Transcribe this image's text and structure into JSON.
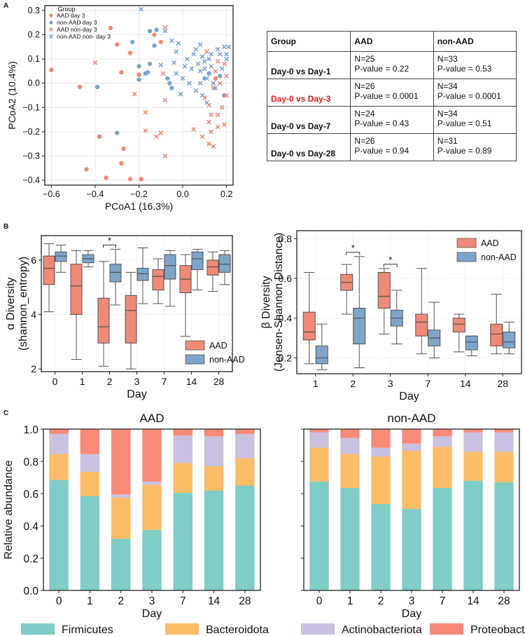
{
  "panels": {
    "a": "A",
    "b": "B",
    "c": "C"
  },
  "table": {
    "headers": [
      "Group",
      "AAD",
      "non-AAD"
    ],
    "rows": [
      {
        "label": "Day-0 vs Day-1",
        "highlight": false,
        "aad_n": "N=25",
        "aad_p": "P-value = 0.22",
        "non_n": "N=33",
        "non_p": "P-value = 0.53"
      },
      {
        "label": "Day-0 vs Day-3",
        "highlight": true,
        "aad_n": "N=26",
        "aad_p": "P-value = 0.0001",
        "non_n": "N=34",
        "non_p": "P-value = 0.0001"
      },
      {
        "label": "Day-0 vs Day-7",
        "highlight": false,
        "aad_n": "N=24",
        "aad_p": "P-value = 0.43",
        "non_n": "N=34",
        "non_p": "P-value = 0.51"
      },
      {
        "label": "Day-0 vs Day-28",
        "highlight": false,
        "aad_n": "N=26",
        "aad_p": "P-value = 0.94",
        "non_n": "N=31",
        "non_p": "P-value = 0.89"
      }
    ]
  },
  "colors": {
    "aad": "#ef8a78",
    "nonaad": "#7ea4c9",
    "firmicutes": "#7fcdc6",
    "bacteroidota": "#fdbc67",
    "actino": "#c9c1df",
    "proteo": "#f98a7a"
  },
  "chart_data": [
    {
      "type": "scatter",
      "title": "",
      "xlabel": "PCoA1 (16.3%)",
      "ylabel": "PCoA2 (10.4%)",
      "xlim": [
        -0.63,
        0.23
      ],
      "ylim": [
        -0.42,
        0.32
      ],
      "xticks": [
        -0.6,
        -0.4,
        -0.2,
        0.0,
        0.2
      ],
      "xtick_labels": [
        "−0.6",
        "−0.4",
        "−0.2",
        "0.0",
        "0.2"
      ],
      "yticks": [
        -0.4,
        -0.3,
        -0.2,
        -0.1,
        0.0,
        0.1,
        0.2,
        0.3
      ],
      "ytick_labels": [
        "−0.4",
        "−0.3",
        "−0.2",
        "−0.1",
        "0.0",
        "0.1",
        "0.2",
        "0.3"
      ],
      "legend_title": "Group",
      "legend_labels": [
        "AAD day 3",
        "non-AAD day 3",
        "AAD non-day 3",
        "non-AAD non- day 3"
      ],
      "series": [
        {
          "name": "AAD day 3",
          "marker": "circle",
          "color": "#ef8a78",
          "points": [
            [
              -0.6,
              0.055
            ],
            [
              -0.47,
              -0.015
            ],
            [
              -0.3,
              0.16
            ],
            [
              -0.33,
              0.228
            ],
            [
              -0.38,
              -0.22
            ],
            [
              -0.44,
              -0.355
            ],
            [
              -0.35,
              -0.39
            ],
            [
              -0.28,
              -0.33
            ],
            [
              -0.27,
              -0.27
            ],
            [
              -0.24,
              -0.395
            ],
            [
              -0.19,
              -0.395
            ],
            [
              -0.28,
              0.045
            ],
            [
              -0.24,
              0.125
            ],
            [
              -0.2,
              0.035
            ],
            [
              -0.13,
              0.2
            ],
            [
              -0.1,
              0.17
            ],
            [
              0.15,
              0.02
            ]
          ]
        },
        {
          "name": "non-AAD day 3",
          "marker": "circle",
          "color": "#7ea4c9",
          "points": [
            [
              -0.39,
              -0.015
            ],
            [
              -0.3,
              -0.205
            ],
            [
              -0.23,
              0.17
            ],
            [
              -0.2,
              0.07
            ],
            [
              -0.15,
              0.215
            ],
            [
              -0.12,
              0.22
            ],
            [
              -0.15,
              0.08
            ],
            [
              -0.16,
              0.045
            ],
            [
              -0.2,
              0.015
            ],
            [
              -0.17,
              0.04
            ],
            [
              -0.13,
              0.155
            ],
            [
              -0.07,
              0.02
            ],
            [
              -0.05,
              -0.02
            ],
            [
              -0.06,
              0.0
            ],
            [
              0.12,
              0.04
            ],
            [
              0.17,
              0.03
            ],
            [
              0.19,
              -0.05
            ],
            [
              0.1,
              0.02
            ]
          ]
        },
        {
          "name": "AAD non-day 3",
          "marker": "x",
          "color": "#ef8a78",
          "points": [
            [
              -0.4,
              0.085
            ],
            [
              -0.22,
              -0.045
            ],
            [
              -0.17,
              -0.12
            ],
            [
              -0.08,
              0.23
            ],
            [
              -0.09,
              0.04
            ],
            [
              -0.08,
              -0.07
            ],
            [
              -0.17,
              -0.195
            ],
            [
              -0.1,
              -0.205
            ],
            [
              -0.12,
              -0.22
            ],
            [
              -0.08,
              -0.3
            ],
            [
              0.05,
              -0.19
            ],
            [
              0.09,
              -0.22
            ],
            [
              0.1,
              -0.06
            ],
            [
              0.12,
              -0.09
            ],
            [
              0.13,
              -0.13
            ],
            [
              0.16,
              -0.13
            ],
            [
              0.18,
              -0.1
            ],
            [
              0.19,
              -0.17
            ],
            [
              0.16,
              -0.18
            ],
            [
              0.13,
              -0.2
            ],
            [
              0.12,
              -0.25
            ],
            [
              0.14,
              -0.26
            ],
            [
              0.15,
              0.05
            ],
            [
              0.16,
              0.09
            ],
            [
              0.19,
              0.08
            ],
            [
              0.2,
              0.03
            ],
            [
              0.14,
              -0.02
            ],
            [
              0.17,
              0.0
            ],
            [
              0.11,
              0.13
            ],
            [
              0.12,
              -0.16
            ],
            [
              0.2,
              -0.05
            ]
          ]
        },
        {
          "name": "non-AAD non- day 3",
          "marker": "x",
          "color": "#7ea4c9",
          "points": [
            [
              -0.19,
              0.305
            ],
            [
              -0.05,
              0.175
            ],
            [
              -0.08,
              0.215
            ],
            [
              -0.02,
              0.165
            ],
            [
              -0.03,
              0.13
            ],
            [
              -0.04,
              0.085
            ],
            [
              -0.1,
              0.075
            ],
            [
              -0.03,
              0.04
            ],
            [
              -0.01,
              -0.045
            ],
            [
              0.01,
              0.07
            ],
            [
              0.02,
              0.1
            ],
            [
              0.04,
              0.06
            ],
            [
              0.05,
              0.12
            ],
            [
              0.06,
              0.14
            ],
            [
              0.07,
              0.08
            ],
            [
              0.08,
              0.05
            ],
            [
              0.08,
              0.0
            ],
            [
              0.09,
              0.11
            ],
            [
              0.1,
              0.09
            ],
            [
              0.1,
              0.06
            ],
            [
              0.11,
              0.02
            ],
            [
              0.12,
              0.1
            ],
            [
              0.13,
              0.12
            ],
            [
              0.13,
              0.07
            ],
            [
              0.14,
              0.0
            ],
            [
              0.15,
              -0.02
            ],
            [
              0.16,
              0.14
            ],
            [
              0.17,
              0.12
            ],
            [
              0.18,
              0.06
            ],
            [
              0.19,
              0.15
            ],
            [
              0.2,
              0.1
            ],
            [
              0.06,
              -0.03
            ],
            [
              0.03,
              0.0
            ],
            [
              0.0,
              0.02
            ],
            [
              0.09,
              -0.05
            ],
            [
              0.11,
              -0.08
            ],
            [
              0.08,
              0.16
            ],
            [
              0.2,
              0.12
            ],
            [
              0.21,
              0.15
            ]
          ]
        }
      ]
    },
    {
      "type": "box",
      "xlabel": "Day",
      "ylabel_line1": "α Diversity",
      "ylabel_line2": "(shannon_entropy)",
      "categories": [
        "0",
        "1",
        "2",
        "3",
        "7",
        "14",
        "28"
      ],
      "ylim": [
        1.9,
        6.9
      ],
      "yticks": [
        2,
        4,
        6
      ],
      "ytick_labels": [
        "2",
        "4",
        "6"
      ],
      "legend_labels": [
        "AAD",
        "non-AAD"
      ],
      "significance": [
        {
          "category": "2",
          "label": "*"
        }
      ],
      "series": [
        {
          "name": "AAD",
          "color": "#ef8a78",
          "boxes": [
            [
              4.1,
              5.1,
              5.7,
              6.15,
              6.6
            ],
            [
              2.35,
              4.0,
              5.05,
              5.85,
              6.35
            ],
            [
              2.1,
              2.95,
              3.55,
              4.6,
              5.95
            ],
            [
              2.0,
              2.95,
              4.15,
              4.7,
              5.55
            ],
            [
              4.4,
              4.9,
              5.4,
              5.65,
              6.05
            ],
            [
              3.2,
              4.8,
              5.3,
              5.8,
              6.2
            ],
            [
              4.85,
              5.45,
              5.75,
              6.0,
              6.3
            ]
          ]
        },
        {
          "name": "non-AAD",
          "color": "#7ea4c9",
          "boxes": [
            [
              5.55,
              5.95,
              6.15,
              6.3,
              6.55
            ],
            [
              5.75,
              5.9,
              6.05,
              6.2,
              6.35
            ],
            [
              4.35,
              5.2,
              5.55,
              5.85,
              6.4
            ],
            [
              4.4,
              5.25,
              5.5,
              5.7,
              6.45
            ],
            [
              4.3,
              5.3,
              5.8,
              6.2,
              6.35
            ],
            [
              4.9,
              5.65,
              6.05,
              6.3,
              6.4
            ],
            [
              5.1,
              5.55,
              5.85,
              6.2,
              6.35
            ]
          ]
        }
      ]
    },
    {
      "type": "box",
      "xlabel": "Day",
      "ylabel_line1": "β Diversity",
      "ylabel_line2": "(Jensen-Shannon Distance)",
      "categories": [
        "1",
        "2",
        "3",
        "7",
        "14",
        "28"
      ],
      "ylim": [
        0.12,
        0.84
      ],
      "yticks": [
        0.2,
        0.4,
        0.6,
        0.8
      ],
      "ytick_labels": [
        "0.2",
        "0.4",
        "0.6",
        "0.8"
      ],
      "legend_labels": [
        "AAD",
        "non-AAD"
      ],
      "significance": [
        {
          "category": "2",
          "label": "*"
        },
        {
          "category": "3",
          "label": "*"
        }
      ],
      "series": [
        {
          "name": "AAD",
          "color": "#ef8a78",
          "boxes": [
            [
              0.17,
              0.29,
              0.33,
              0.43,
              0.63
            ],
            [
              0.42,
              0.54,
              0.58,
              0.62,
              0.67
            ],
            [
              0.32,
              0.45,
              0.51,
              0.63,
              0.65
            ],
            [
              0.22,
              0.31,
              0.38,
              0.42,
              0.65
            ],
            [
              0.23,
              0.33,
              0.37,
              0.4,
              0.42
            ],
            [
              0.22,
              0.26,
              0.32,
              0.37,
              0.52
            ]
          ]
        },
        {
          "name": "non-AAD",
          "color": "#7ea4c9",
          "boxes": [
            [
              0.14,
              0.17,
              0.2,
              0.26,
              0.37
            ],
            [
              0.15,
              0.27,
              0.4,
              0.45,
              0.71
            ],
            [
              0.27,
              0.36,
              0.4,
              0.44,
              0.54
            ],
            [
              0.2,
              0.26,
              0.3,
              0.34,
              0.48
            ],
            [
              0.21,
              0.24,
              0.28,
              0.31,
              0.31
            ],
            [
              0.22,
              0.25,
              0.28,
              0.33,
              0.38
            ]
          ]
        }
      ]
    },
    {
      "type": "bar",
      "stacked": true,
      "title": "AAD",
      "xlabel": "Day",
      "ylabel": "Relative abundance",
      "categories": [
        "0",
        "1",
        "2",
        "3",
        "7",
        "14",
        "28"
      ],
      "ylim": [
        0,
        1.0
      ],
      "yticks": [
        0.0,
        0.2,
        0.4,
        0.6,
        0.8,
        1.0
      ],
      "ytick_labels": [
        "0.0",
        "0.2",
        "0.4",
        "0.6",
        "0.8",
        "1.0"
      ],
      "series": [
        {
          "name": "Firmicutes",
          "values": [
            0.685,
            0.585,
            0.32,
            0.375,
            0.605,
            0.62,
            0.65
          ]
        },
        {
          "name": "Bacteroidota",
          "values": [
            0.16,
            0.15,
            0.255,
            0.28,
            0.185,
            0.15,
            0.17
          ]
        },
        {
          "name": "Actinobacteriota",
          "values": [
            0.125,
            0.11,
            0.02,
            0.02,
            0.17,
            0.185,
            0.15
          ]
        },
        {
          "name": "Proteobacteria",
          "values": [
            0.03,
            0.155,
            0.405,
            0.325,
            0.04,
            0.045,
            0.03
          ]
        }
      ]
    },
    {
      "type": "bar",
      "stacked": true,
      "title": "non-AAD",
      "xlabel": "Day",
      "ylabel": "",
      "categories": [
        "0",
        "1",
        "2",
        "3",
        "7",
        "14",
        "28"
      ],
      "ylim": [
        0,
        1.0
      ],
      "yticks": [
        0.0,
        0.2,
        0.4,
        0.6,
        0.8,
        1.0
      ],
      "ytick_labels": [
        "0.0",
        "0.2",
        "0.4",
        "0.6",
        "0.8",
        "1.0"
      ],
      "series": [
        {
          "name": "Firmicutes",
          "values": [
            0.675,
            0.635,
            0.535,
            0.505,
            0.635,
            0.68,
            0.67
          ]
        },
        {
          "name": "Bacteroidota",
          "values": [
            0.21,
            0.21,
            0.295,
            0.36,
            0.255,
            0.18,
            0.19
          ]
        },
        {
          "name": "Actinobacteriota",
          "values": [
            0.095,
            0.1,
            0.055,
            0.045,
            0.065,
            0.12,
            0.12
          ]
        },
        {
          "name": "Proteobacteria",
          "values": [
            0.02,
            0.055,
            0.115,
            0.09,
            0.045,
            0.02,
            0.02
          ]
        }
      ]
    }
  ],
  "bottom_legend": [
    "Firmicutes",
    "Bacteroidota",
    "Actinobacteriota",
    "Proteobacteria"
  ]
}
